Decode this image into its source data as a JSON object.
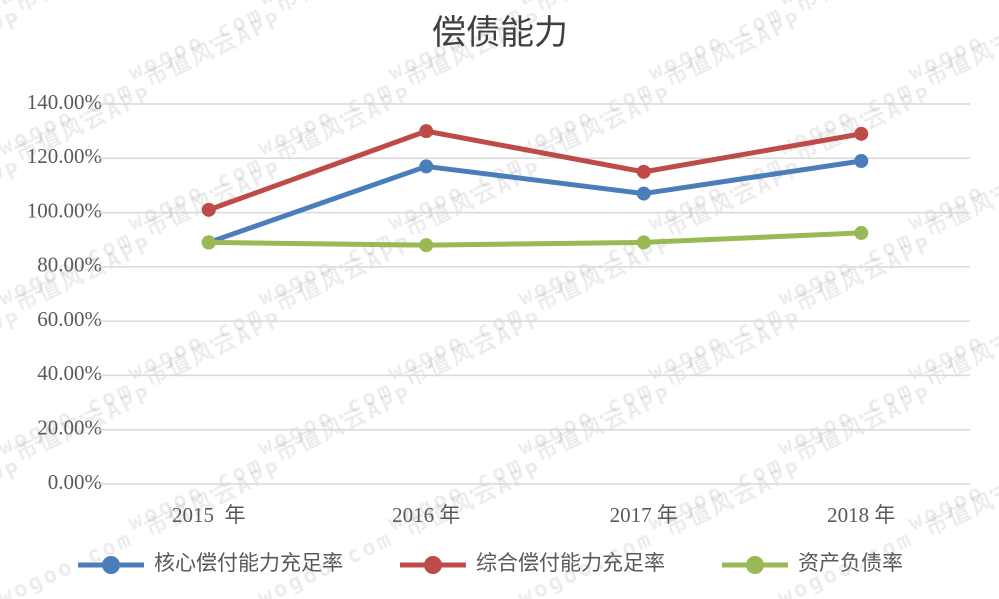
{
  "chart_data": {
    "type": "line",
    "title": "偿债能力",
    "categories": [
      "2015  年",
      "2016 年",
      "2017 年",
      "2018 年"
    ],
    "series": [
      {
        "name": "核心偿付能力充足率",
        "color": "#4a7ebb",
        "values": [
          89,
          117,
          107,
          119
        ]
      },
      {
        "name": "综合偿付能力充足率",
        "color": "#be4b48",
        "values": [
          101,
          130,
          115,
          129
        ]
      },
      {
        "name": "资产负债率",
        "color": "#98b954",
        "values": [
          89,
          88,
          89,
          92.5
        ]
      }
    ],
    "ylim": [
      0,
      140
    ],
    "yticks": [
      {
        "value": 0,
        "label": "0.00%"
      },
      {
        "value": 20,
        "label": "20.00%"
      },
      {
        "value": 40,
        "label": "40.00%"
      },
      {
        "value": 60,
        "label": "60.00%"
      },
      {
        "value": 80,
        "label": "80.00%"
      },
      {
        "value": 100,
        "label": "100.00%"
      },
      {
        "value": 120,
        "label": "120.00%"
      },
      {
        "value": 140,
        "label": "140.00%"
      }
    ],
    "grid": true,
    "legend": "bottom",
    "watermark": "wogoo.com 市值风云APP"
  }
}
